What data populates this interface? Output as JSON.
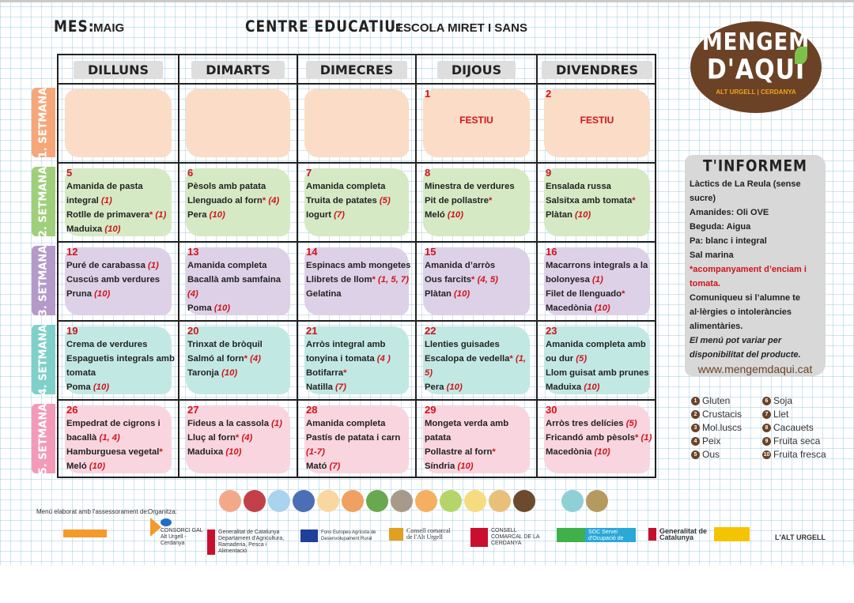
{
  "header": {
    "month_label": "MES:",
    "month": "MAIG",
    "centre_label": "CENTRE EDUCATIU:",
    "centre": "ESCOLA MIRET I SANS"
  },
  "logo": {
    "line1": "MENGEM",
    "line2": "D'AQUI",
    "sub": "ALT URGELL | CERDANYA",
    "color": "#6b4226"
  },
  "days": [
    "DILLUNS",
    "DIMARTS",
    "DIMECRES",
    "DIJOUS",
    "DIVENDRES"
  ],
  "weeks": [
    {
      "label": "1. SETMANA",
      "color": "#f5a77a",
      "blob": "#fbdcc6",
      "cells": [
        {
          "day": "",
          "items": []
        },
        {
          "day": "",
          "items": []
        },
        {
          "day": "",
          "items": []
        },
        {
          "day": "1",
          "festiu": "FESTIU",
          "items": []
        },
        {
          "day": "2",
          "festiu": "FESTIU",
          "items": []
        }
      ]
    },
    {
      "label": "2. SETMANA",
      "color": "#9fcf7a",
      "blob": "#d5e9c4",
      "cells": [
        {
          "day": "5",
          "items": [
            {
              "t": "Amanida de pasta integral",
              "n": "(1)"
            },
            {
              "t": "Rotlle de primavera",
              "s": true,
              "n": "(1)"
            },
            {
              "t": "Maduixa",
              "n": "(10)"
            }
          ]
        },
        {
          "day": "6",
          "items": [
            {
              "t": "Pèsols amb patata"
            },
            {
              "t": "Llenguado al forn",
              "s": true,
              "n": "(4)"
            },
            {
              "t": "Pera",
              "n": "(10)"
            }
          ]
        },
        {
          "day": "7",
          "items": [
            {
              "t": "Amanida completa"
            },
            {
              "t": "Truita de patates",
              "n": "(5)"
            },
            {
              "t": "Iogurt",
              "n": "(7)"
            }
          ]
        },
        {
          "day": "8",
          "items": [
            {
              "t": "Minestra de verdures"
            },
            {
              "t": "Pit de pollastre",
              "s": true
            },
            {
              "t": "Meló",
              "n": "(10)"
            }
          ]
        },
        {
          "day": "9",
          "items": [
            {
              "t": "Ensalada russa"
            },
            {
              "t": "Salsitxa amb tomata",
              "s": true
            },
            {
              "t": "Plàtan",
              "n": "(10)"
            }
          ]
        }
      ]
    },
    {
      "label": "3. SETMANA",
      "color": "#b49ac8",
      "blob": "#ddd1e7",
      "cells": [
        {
          "day": "12",
          "items": [
            {
              "t": "Puré de carabassa",
              "n": "(1)"
            },
            {
              "t": "Cuscús amb verdures"
            },
            {
              "t": "Pruna",
              "n": "(10)"
            }
          ]
        },
        {
          "day": "13",
          "items": [
            {
              "t": "Amanida completa"
            },
            {
              "t": "Bacallà amb samfaina",
              "n": "(4)"
            },
            {
              "t": "Poma",
              "n": "(10)"
            }
          ]
        },
        {
          "day": "14",
          "items": [
            {
              "t": "Espinacs amb mongetes"
            },
            {
              "t": "Llibrets de llom",
              "s": true,
              "n": "(1, 5, 7)"
            },
            {
              "t": "Gelatina"
            }
          ]
        },
        {
          "day": "15",
          "items": [
            {
              "t": "Amanida d’arròs"
            },
            {
              "t": "Ous farcits",
              "s": true,
              "n": "(4, 5)"
            },
            {
              "t": "Plàtan",
              "n": "(10)"
            }
          ]
        },
        {
          "day": "16",
          "items": [
            {
              "t": "Macarrons integrals a la bolonyesa",
              "n": "(1)"
            },
            {
              "t": "Filet de llenguado",
              "s": true
            },
            {
              "t": "Macedònia",
              "n": "(10)"
            }
          ]
        }
      ]
    },
    {
      "label": "4. SETMANA",
      "color": "#7fd0c8",
      "blob": "#c2e8e3",
      "cells": [
        {
          "day": "19",
          "items": [
            {
              "t": "Crema de verdures"
            },
            {
              "t": "Espaguetis integrals amb tomata"
            },
            {
              "t": "Poma",
              "n": "(10)"
            }
          ]
        },
        {
          "day": "20",
          "items": [
            {
              "t": "Trinxat de bròquil"
            },
            {
              "t": "Salmó al forn",
              "s": true,
              "n": "(4)"
            },
            {
              "t": "Taronja",
              "n": "(10)"
            }
          ]
        },
        {
          "day": "21",
          "items": [
            {
              "t": "Arròs integral amb tonyina i tomata",
              "n": "(4 )"
            },
            {
              "t": "Botifarra",
              "s": true
            },
            {
              "t": "Natilla",
              "n": "(7)"
            }
          ]
        },
        {
          "day": "22",
          "items": [
            {
              "t": "Llenties guisades"
            },
            {
              "t": "Escalopa de vedella",
              "s": true,
              "n": "(1, 5)"
            },
            {
              "t": "Pera",
              "n": "(10)"
            }
          ]
        },
        {
          "day": "23",
          "items": [
            {
              "t": "Amanida completa amb ou dur",
              "n": "(5)"
            },
            {
              "t": "Llom guisat amb prunes"
            },
            {
              "t": "Maduixa",
              "n": "(10)"
            }
          ]
        }
      ]
    },
    {
      "label": "5. SETMANA",
      "color": "#f29ab8",
      "blob": "#f9d5df",
      "cells": [
        {
          "day": "26",
          "items": [
            {
              "t": "Empedrat de cigrons i bacallà",
              "n": "(1, 4)"
            },
            {
              "t": "Hamburguesa vegetal",
              "s": true
            },
            {
              "t": "Meló",
              "n": "(10)"
            }
          ]
        },
        {
          "day": "27",
          "items": [
            {
              "t": "Fideus a la cassola",
              "n": "(1)"
            },
            {
              "t": "Lluç al forn",
              "s": true,
              "n": "(4)"
            },
            {
              "t": "Maduixa",
              "n": "(10)"
            }
          ]
        },
        {
          "day": "28",
          "items": [
            {
              "t": "Amanida completa"
            },
            {
              "t": "Pastís de patata i carn",
              "n": "(1-7)"
            },
            {
              "t": "Mató",
              "n": "(7)"
            }
          ]
        },
        {
          "day": "29",
          "items": [
            {
              "t": "Mongeta verda amb patata"
            },
            {
              "t": "Pollastre al forn",
              "s": true
            },
            {
              "t": "Síndria",
              "n": "(10)"
            }
          ]
        },
        {
          "day": "30",
          "items": [
            {
              "t": "Arròs tres delícies",
              "n": "(5)"
            },
            {
              "t": "Fricandó amb pèsols",
              "s": true,
              "n": "(1)"
            },
            {
              "t": "Macedònia",
              "n": "(10)"
            }
          ]
        }
      ]
    }
  ],
  "info": {
    "title": "T'INFORMEM",
    "lines": [
      "Làctics de La Reula (sense sucre)",
      "Amanides: Oli OVE",
      "Beguda: Aigua",
      "Pa: blanc i integral",
      "Sal marina"
    ],
    "red_note": "*acompanyament  d’enciam i tomata.",
    "notice": "Comuniqueu si l’alumne te al·lèrgies o intoleràncies alimentàries.",
    "italic": "El menú pot variar per disponibilitat del producte.",
    "url": "www.mengemdaqui.cat"
  },
  "legend": [
    {
      "n": "1",
      "t": "Gluten"
    },
    {
      "n": "6",
      "t": "Soja"
    },
    {
      "n": "2",
      "t": "Crustacis"
    },
    {
      "n": "7",
      "t": "Llet"
    },
    {
      "n": "3",
      "t": "Mol.luscs"
    },
    {
      "n": "8",
      "t": "Cacauets"
    },
    {
      "n": "4",
      "t": "Peix"
    },
    {
      "n": "9",
      "t": "Fruita seca"
    },
    {
      "n": "5",
      "t": "Ous"
    },
    {
      "n": "10",
      "t": "Fruita fresca"
    }
  ],
  "food_icons": [
    {
      "name": "chicken-leg",
      "color": "#f2a98a"
    },
    {
      "name": "meat",
      "color": "#c2404a"
    },
    {
      "name": "fish",
      "color": "#a9d3ee"
    },
    {
      "name": "sardines",
      "color": "#4a6fb5"
    },
    {
      "name": "pasta",
      "color": "#fad7a0"
    },
    {
      "name": "grain",
      "color": "#f0a060"
    },
    {
      "name": "vegetables",
      "color": "#6aa84f"
    },
    {
      "name": "legumes",
      "color": "#a89a8a"
    },
    {
      "name": "hen",
      "color": "#f4b060"
    },
    {
      "name": "apple",
      "color": "#b5d56a"
    },
    {
      "name": "dairy",
      "color": "#f5dc80"
    },
    {
      "name": "bread",
      "color": "#e8c07a"
    },
    {
      "name": "leaf",
      "color": "#6b4a2e"
    },
    {
      "name": "water-jug",
      "color": "#8fd0d5"
    },
    {
      "name": "oil-bottle",
      "color": "#b59a60"
    }
  ],
  "footer": {
    "advice": "Menú elaborat amb l'assessorament de:",
    "organizer": "Organitza:",
    "logos": [
      "CONSORCI GAL Alt Urgell - Cerdanya",
      "Generalitat de Catalunya Departament d'Agricultura, Ramaderia, Pesca i Alimentació",
      "Fons Europeu Agrícola de Desenvolupament Rural",
      "Consell comarcal de l'Alt Urgell",
      "CONSELL COMARCAL DE LA CERDANYA",
      "SOC Servei d'Ocupació de Catalunya",
      "Generalitat de Catalunya",
      "L'ALT URGELL"
    ]
  }
}
